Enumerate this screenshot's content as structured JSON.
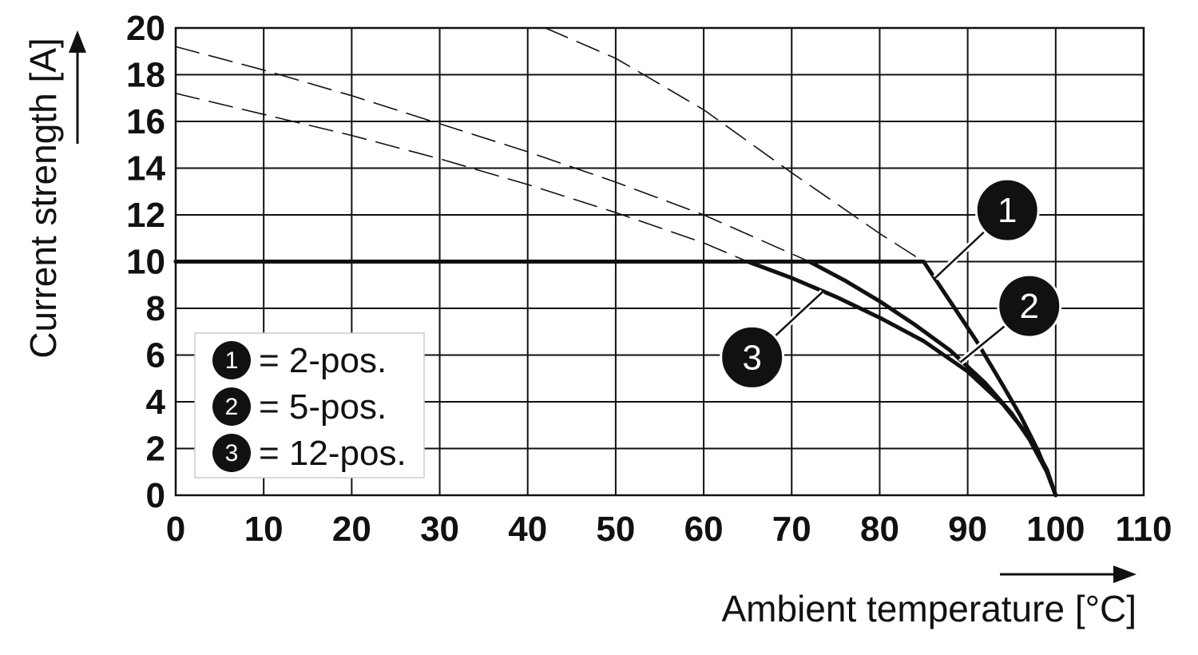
{
  "chart_data": {
    "type": "line",
    "xlabel": "Ambient temperature [°C]",
    "ylabel": "Current strength [A]",
    "xlim": [
      0,
      110
    ],
    "ylim": [
      0,
      20
    ],
    "x_ticks": [
      "0",
      "10",
      "20",
      "30",
      "40",
      "50",
      "60",
      "70",
      "80",
      "90",
      "100",
      "110"
    ],
    "y_ticks": [
      "0",
      "2",
      "4",
      "6",
      "8",
      "10",
      "12",
      "14",
      "16",
      "18",
      "20"
    ],
    "grid": true,
    "legend": {
      "position": "bottom-left",
      "entries": [
        {
          "marker": "1",
          "label": "= 2-pos."
        },
        {
          "marker": "2",
          "label": "= 5-pos."
        },
        {
          "marker": "3",
          "label": "= 12-pos."
        }
      ]
    },
    "series": [
      {
        "marker": "1",
        "style": "solid",
        "x": [
          0,
          85,
          88,
          91,
          94,
          96,
          98,
          99,
          100
        ],
        "y": [
          10,
          10,
          8.3,
          6.6,
          4.7,
          3.4,
          1.9,
          1.0,
          0
        ]
      },
      {
        "marker": "2",
        "style": "solid",
        "x": [
          0,
          72,
          76,
          80,
          84,
          88,
          92,
          95,
          97,
          99,
          100
        ],
        "y": [
          10,
          10,
          9.2,
          8.3,
          7.3,
          6.2,
          4.8,
          3.5,
          2.4,
          1.0,
          0
        ]
      },
      {
        "marker": "3",
        "style": "solid",
        "x": [
          0,
          65,
          70,
          75,
          80,
          85,
          90,
          94,
          97,
          99,
          100
        ],
        "y": [
          10,
          10,
          9.3,
          8.5,
          7.6,
          6.6,
          5.3,
          3.9,
          2.5,
          1.1,
          0
        ]
      },
      {
        "marker": "1",
        "style": "dashed",
        "x": [
          42,
          50,
          60,
          70,
          80,
          85
        ],
        "y": [
          20,
          18.7,
          16.5,
          13.8,
          11.2,
          10
        ]
      },
      {
        "marker": "2",
        "style": "dashed",
        "x": [
          0,
          10,
          20,
          30,
          40,
          50,
          60,
          72
        ],
        "y": [
          19.2,
          18.2,
          17.1,
          15.9,
          14.7,
          13.4,
          12.0,
          10
        ]
      },
      {
        "marker": "3",
        "style": "dashed",
        "x": [
          0,
          10,
          20,
          30,
          40,
          50,
          60,
          65
        ],
        "y": [
          17.2,
          16.3,
          15.4,
          14.4,
          13.3,
          12.1,
          10.8,
          10
        ]
      }
    ],
    "callouts": [
      {
        "marker": "1",
        "label_at": [
          94.5,
          12.2
        ],
        "pointer_to": [
          86.3,
          9.3
        ]
      },
      {
        "marker": "2",
        "label_at": [
          97,
          8.1
        ],
        "pointer_to": [
          89.2,
          5.7
        ]
      },
      {
        "marker": "3",
        "label_at": [
          65.5,
          5.9
        ],
        "pointer_to": [
          73.5,
          8.7
        ]
      }
    ]
  }
}
